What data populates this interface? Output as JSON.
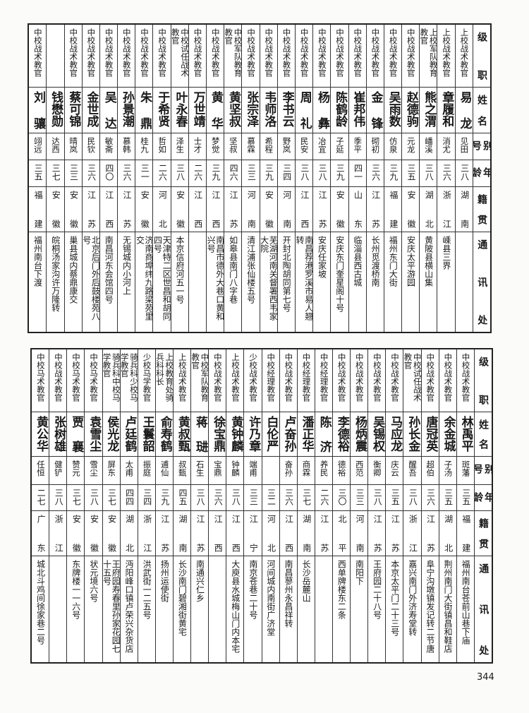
{
  "header": [
    "级职",
    "姓名",
    "别号",
    "年龄",
    "籍贯",
    "通讯处"
  ],
  "tables": [
    {
      "rows": [
        [
          "上校战术教官",
          "易龙",
          "见田",
          "三八",
          "湖南",
          ""
        ],
        [
          "上校战术教官",
          "章履和",
          "消尤",
          "三六",
          "浙江",
          "嵊县三界"
        ],
        [
          "上校军队教育教官",
          "熊之渭",
          "嶓溪",
          "三八",
          "湖北",
          "黄陂县横山集"
        ],
        [
          "中校战术教官",
          "赵德驹",
          "元龙",
          "三五",
          "安徽",
          "安庆太平游园"
        ],
        [
          "中校战术教官",
          "吴雨数",
          "仿泉",
          "三九",
          "福建",
          "福州东门大街"
        ],
        [
          "中校战术教官",
          "金锋",
          "砌初",
          "三六",
          "江苏",
          "长州觅渡桥南"
        ],
        [
          "中校战术教官",
          "崔邦伟",
          "季平",
          "四一",
          "山东",
          "临淄县西古城"
        ],
        [
          "中校战术教官",
          "陈鹤龄",
          "子延",
          "三九",
          "安徽",
          "安庆东门奎星阁十号"
        ],
        [
          "中校战术教官",
          "杨彝",
          "冶宜",
          "三八",
          "江苏",
          "安庆任家坡"
        ],
        [
          "中校战术教官",
          "周礼",
          "民安",
          "三八",
          "江西",
          "南昌荐港罗溪市易人翘转"
        ],
        [
          "中校战术教官",
          "李书云",
          "野岚",
          "三四",
          "河南",
          "开封北陶胡同第七号"
        ],
        [
          "中校战术教官",
          "韦师洛",
          "希程",
          "三九",
          "安徽",
          "芜湖河南关督署西韦家大院"
        ],
        [
          "中校战术教官",
          "张宗泽",
          "慕霖",
          "三三",
          "河南",
          "清江浦张仙楼五号"
        ],
        [
          "中校军队教育教官",
          "黄坚叔",
          "坚叔",
          "四六",
          "江苏",
          "如皋县南门八字巷"
        ],
        [
          "中校战术教官",
          "黄华",
          "梦觉",
          "三九",
          "江西",
          "南昌市德外大巷口黄和兴号"
        ],
        [
          "中校战术教官",
          "万世靖",
          "士才",
          "二六",
          "江西",
          ""
        ],
        [
          "中校试任战术教官",
          "叶永春",
          "泽生",
          "三八",
          "安徽",
          "本京信府河五一号"
        ],
        [
          "中校战术教官",
          "于希贤",
          "哲如",
          "二六",
          "河北",
          "天津特二区世昌和胡同四号"
        ],
        [
          "中校战术教官",
          "朱鼎",
          "桂九",
          "三一",
          "安徽",
          "济南商埠纬九路梁苑里交"
        ],
        [
          "中校战术教官",
          "孙景潮",
          "慕韩",
          "三六",
          "江苏",
          "无锡城内小河上"
        ],
        [
          "中校战术教官",
          "吴达",
          "敏斋",
          "四〇",
          "江西",
          "南昌河东会馆四号"
        ],
        [
          "中校战术教官",
          "金世成",
          "民钦",
          "三六",
          "江苏",
          "北京后门外后鼓楼苑八号"
        ],
        [
          "中校战术教官",
          "蔡可锦",
          "晴岚",
          "三三",
          "安徽",
          "巢县城内蔡鼎康交"
        ],
        [
          "",
          "钱懋勋",
          "达西",
          "三七",
          "安徽",
          "皖桐汤家沟许万隆转"
        ],
        [
          "中校战术教官",
          "刘骧",
          "翊远",
          "三五",
          "福建",
          "福州南台下渡"
        ]
      ]
    },
    {
      "rows": [
        [
          "中校战术教官",
          "林禹平",
          "斑藩",
          "三五",
          "福建",
          "福州南台苍前山巷下庙"
        ],
        [
          "中校战术教官",
          "余金城",
          "子汤",
          "三五",
          "湖北",
          "荆州南门大街镇昌和鞋店"
        ],
        [
          "中校战术教官",
          "唐冠英",
          "超伯",
          "三六",
          "江苏",
          "阜宁沟墩镇发记转二节唐"
        ],
        [
          "中校试任战术教官",
          "孙长金",
          "醒吾",
          "三八",
          "浙江",
          "嘉兴南门外济寿堂转"
        ],
        [
          "中校战术教官",
          "马应龙",
          "庆云",
          "三五",
          "江苏",
          "本京太平门二十三号"
        ],
        [
          "中校战术教官",
          "吴锡权",
          "衡卿",
          "三八",
          "江苏",
          "王府园二十八号"
        ],
        [
          "中校战术教官",
          "杨炳震",
          "西范",
          "三三",
          "河南",
          "南阳下"
        ],
        [
          "中校战术教官",
          "李德裕",
          "德裕",
          "三〇",
          "北平",
          "西单牌楼东二条"
        ],
        [
          "中校经理教官",
          "陈济",
          "养民",
          "二六",
          "江苏",
          ""
        ],
        [
          "中校经理教官",
          "潘正华",
          "商霖",
          "三七",
          "湖南",
          "长沙岳麓山"
        ],
        [
          "中校战术教官",
          "卢奋孙",
          "奋孙",
          "三六",
          "江西",
          "南昌蓼州永昌祥转"
        ],
        [
          "中校经理教官",
          "白伦严",
          "",
          "三二",
          "河北",
          "河间城内南街广济堂"
        ],
        [
          "少校战术教官",
          "许乃章",
          "端甫",
          "三三",
          "江宁",
          "南京苍巷二十号"
        ],
        [
          "上校战术教官",
          "黄钟麟",
          "钟麟",
          "三八",
          "江西",
          "大庾县水城梅山门内本宅"
        ],
        [
          "中校战术教官",
          "徐宝鼎",
          "宝鼎",
          "三六",
          "江西",
          ""
        ],
        [
          "中校军队教育教官",
          "蒋琎",
          "石生",
          "三八",
          "江苏",
          "南通兴仁乡"
        ],
        [
          "上校战术教官",
          "黄叔甄",
          "叔甄",
          "四五",
          "湖南",
          "长沙南门碧湘街黄宅"
        ],
        [
          "上校教育处骑兵科科长",
          "俞寿鹤",
          "逋仙",
          "三九",
          "江苏",
          "扬州运使街"
        ],
        [
          "少校马学教官",
          "王鬟韶",
          "振庭",
          "三四",
          "浙江",
          "洪武街一二五号"
        ],
        [
          "骑兵科少校马学教官",
          "卢廷鹤",
          "太甫",
          "四四",
          "湖北",
          "沔阳峰口镇卢荣兴杂货店"
        ],
        [
          "骑兵科中校马学教官",
          "侯光龙",
          "屏东",
          "三七",
          "安徽",
          "王府园寿春里孙家花园七十五号"
        ],
        [
          "中校马术教官",
          "袁雪尘",
          "雪尘",
          "三八",
          "安徽",
          "状元境六号"
        ],
        [
          "中校马术教官",
          "贾襄",
          "赞元",
          "三七",
          "安徽",
          "东牌楼一一六号"
        ],
        [
          "中校战术教官",
          "张树雄",
          "健铲",
          "三八",
          "浙江",
          ""
        ],
        [
          "中校马术教官",
          "黄公华",
          "任恒",
          "二七",
          "广东",
          "城北斗鸡间徐家巷二号"
        ]
      ]
    }
  ],
  "page_number": "344"
}
